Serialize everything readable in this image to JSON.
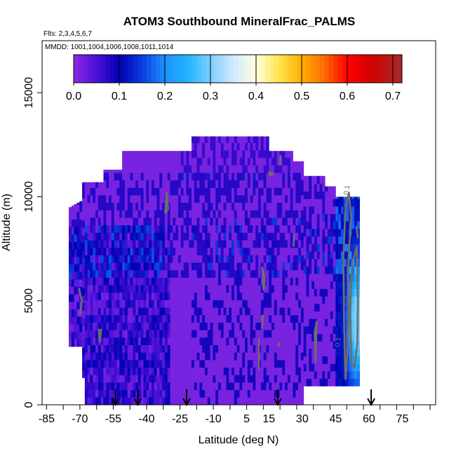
{
  "chart_data": {
    "type": "heatmap",
    "title": "ATOM3 Southbound MineralFrac_PALMS",
    "subtitle_flights": "Flts: 2,3,4,5,6,7",
    "subtitle_dates": "MMDD: 1001,1004,1006,1008,1011,1014",
    "xlabel": "Latitude (deg N)",
    "ylabel": "Altitude (m)",
    "xlim": [
      -87,
      90
    ],
    "ylim": [
      0,
      17500
    ],
    "x_ticks": [
      "-85",
      "-70",
      "-55",
      "-40",
      "-25",
      "-10",
      "5",
      "15",
      "30",
      "45",
      "60",
      "75"
    ],
    "x_tick_values": [
      -85,
      -70,
      -55,
      -40,
      -25,
      -10,
      5,
      15,
      30,
      45,
      60,
      75
    ],
    "y_ticks": [
      "0",
      "5000",
      "10000",
      "15000"
    ],
    "y_tick_values": [
      0,
      5000,
      10000,
      15000
    ],
    "colorbar": {
      "range": [
        0,
        0.72
      ],
      "ticks": [
        "0.0",
        "0.1",
        "0.2",
        "0.3",
        "0.4",
        "0.5",
        "0.6",
        "0.7"
      ],
      "tick_values": [
        0.0,
        0.1,
        0.2,
        0.3,
        0.4,
        0.5,
        0.6,
        0.7
      ],
      "stops": [
        {
          "v": 0.0,
          "color": "#8a2be2"
        },
        {
          "v": 0.05,
          "color": "#4b10d8"
        },
        {
          "v": 0.1,
          "color": "#0000b4"
        },
        {
          "v": 0.15,
          "color": "#0b3ce0"
        },
        {
          "v": 0.2,
          "color": "#1e90ff"
        },
        {
          "v": 0.25,
          "color": "#1eb4ff"
        },
        {
          "v": 0.3,
          "color": "#7ecfff"
        },
        {
          "v": 0.35,
          "color": "#cfe9ff"
        },
        {
          "v": 0.4,
          "color": "#ffffe0"
        },
        {
          "v": 0.45,
          "color": "#ffe44d"
        },
        {
          "v": 0.5,
          "color": "#ffb000"
        },
        {
          "v": 0.55,
          "color": "#ff6a00"
        },
        {
          "v": 0.6,
          "color": "#ff0000"
        },
        {
          "v": 0.65,
          "color": "#d40000"
        },
        {
          "v": 0.72,
          "color": "#a52a2a"
        }
      ]
    },
    "profile_markers_lat": [
      -54,
      -44,
      -22,
      19,
      61
    ],
    "contour_labels": [
      {
        "text": "0.1",
        "lat": 51,
        "alt": 10300
      },
      {
        "text": "0.2",
        "lat": 51,
        "alt": 5000
      },
      {
        "text": "0.1",
        "lat": 47,
        "alt": 3000
      }
    ]
  }
}
